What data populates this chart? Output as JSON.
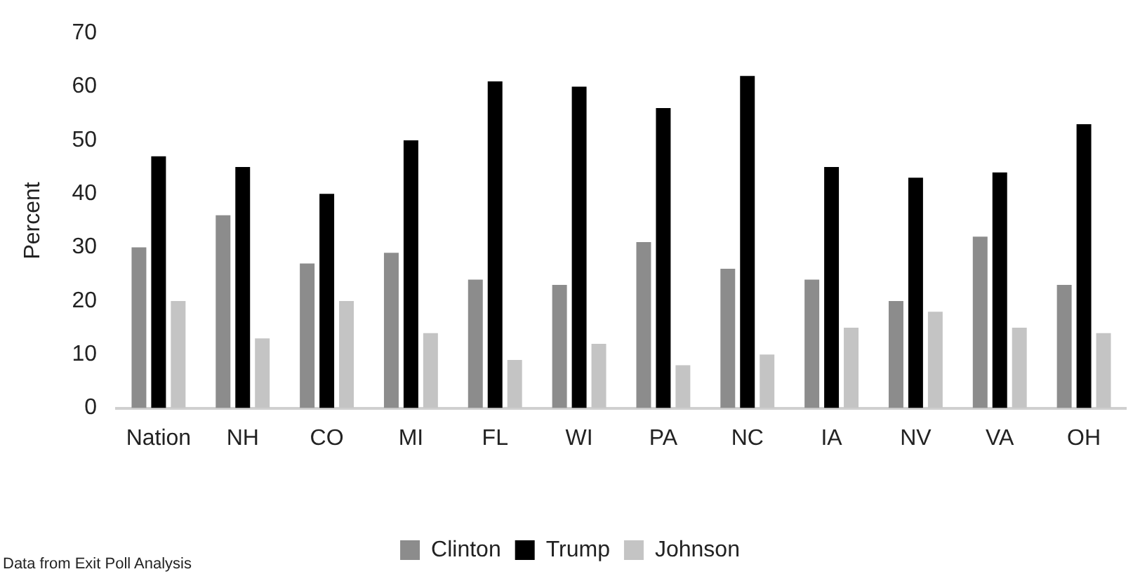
{
  "chart_data": {
    "type": "bar",
    "ylabel": "Percent",
    "categories": [
      "Nation",
      "NH",
      "CO",
      "MI",
      "FL",
      "WI",
      "PA",
      "NC",
      "IA",
      "NV",
      "VA",
      "OH"
    ],
    "series": [
      {
        "name": "Clinton",
        "color": "#8c8c8c",
        "values": [
          30,
          36,
          27,
          29,
          24,
          23,
          31,
          26,
          24,
          20,
          32,
          23
        ]
      },
      {
        "name": "Trump",
        "color": "#000000",
        "values": [
          47,
          45,
          40,
          50,
          61,
          60,
          56,
          62,
          45,
          43,
          44,
          53
        ]
      },
      {
        "name": "Johnson",
        "color": "#c4c4c4",
        "values": [
          20,
          13,
          20,
          14,
          9,
          12,
          8,
          10,
          15,
          18,
          15,
          14
        ]
      }
    ],
    "ylim": [
      0,
      70
    ],
    "yticks": [
      0,
      10,
      20,
      30,
      40,
      50,
      60,
      70
    ],
    "grid": false,
    "legend": "bottom",
    "annotations": [
      "Data from Exit Poll Analysis"
    ]
  }
}
